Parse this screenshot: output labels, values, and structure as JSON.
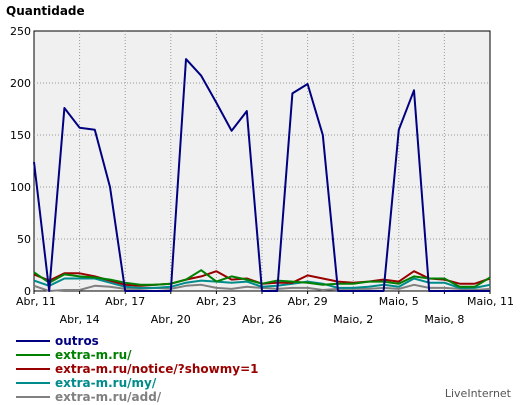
{
  "chart_data": {
    "type": "line",
    "ylabel": "Quantidade",
    "ylim": [
      0,
      250
    ],
    "yticks": [
      0,
      50,
      100,
      150,
      200,
      250
    ],
    "grid": "dotted",
    "x_tick_labels_top": [
      "Abr, 11",
      "Abr, 17",
      "Abr, 23",
      "Abr, 29",
      "Maio, 5",
      "Maio, 11"
    ],
    "x_tick_labels_bottom": [
      "Abr, 14",
      "Abr, 20",
      "Abr, 26",
      "Maio, 2",
      "Maio, 8"
    ],
    "x_count": 31,
    "legend_placement": "bottom-left",
    "series": [
      {
        "name": "outros",
        "color": "#000080",
        "values": [
          124,
          0,
          176,
          157,
          155,
          100,
          0,
          0,
          0,
          0,
          223,
          207,
          181,
          154,
          173,
          0,
          0,
          190,
          199,
          150,
          0,
          0,
          0,
          0,
          155,
          193,
          0,
          0,
          0,
          0,
          0
        ]
      },
      {
        "name": "extra-m.ru/",
        "color": "#008000",
        "values": [
          18,
          8,
          16,
          14,
          13,
          11,
          8,
          6,
          6,
          7,
          11,
          20,
          9,
          14,
          11,
          7,
          10,
          9,
          8,
          6,
          7,
          7,
          9,
          9,
          7,
          14,
          12,
          12,
          4,
          4,
          13
        ]
      },
      {
        "name": "extra-m.ru/notice/?showmy=1",
        "color": "#990000",
        "values": [
          16,
          10,
          17,
          17,
          14,
          10,
          6,
          5,
          6,
          7,
          11,
          14,
          19,
          11,
          12,
          7,
          8,
          8,
          15,
          12,
          9,
          8,
          9,
          11,
          9,
          19,
          12,
          11,
          7,
          7,
          12
        ]
      },
      {
        "name": "extra-m.ru/my/",
        "color": "#008B8B",
        "values": [
          10,
          5,
          12,
          12,
          12,
          8,
          4,
          3,
          3,
          4,
          8,
          10,
          9,
          8,
          9,
          4,
          5,
          7,
          9,
          7,
          3,
          3,
          4,
          6,
          4,
          12,
          8,
          8,
          3,
          3,
          6
        ]
      },
      {
        "name": "extra-m.ru/add/",
        "color": "#808080",
        "values": [
          5,
          0,
          1,
          1,
          5,
          4,
          2,
          2,
          3,
          2,
          5,
          6,
          3,
          2,
          4,
          3,
          2,
          3,
          3,
          1,
          2,
          2,
          2,
          3,
          2,
          6,
          3,
          3,
          2,
          1,
          2
        ]
      }
    ]
  },
  "credit": "LiveInternet"
}
